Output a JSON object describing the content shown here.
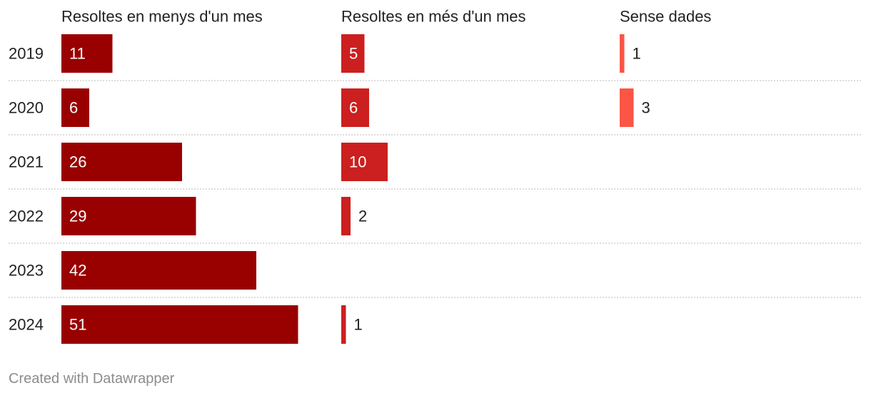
{
  "chart_data": {
    "type": "bar",
    "categories": [
      "2019",
      "2020",
      "2021",
      "2022",
      "2023",
      "2024"
    ],
    "series": [
      {
        "name": "Resoltes en menys d'un mes",
        "values": [
          11,
          6,
          26,
          29,
          42,
          51
        ],
        "color": "#990000"
      },
      {
        "name": "Resoltes en més d'un mes",
        "values": [
          5,
          6,
          10,
          2,
          null,
          1
        ],
        "color": "#cc1f1f"
      },
      {
        "name": "Sense dades",
        "values": [
          1,
          3,
          null,
          null,
          null,
          null
        ],
        "color": "#fb5546"
      }
    ],
    "label_inside_color": "#ffffff",
    "label_outside_color": "#222222"
  },
  "footer": "Created with Datawrapper"
}
